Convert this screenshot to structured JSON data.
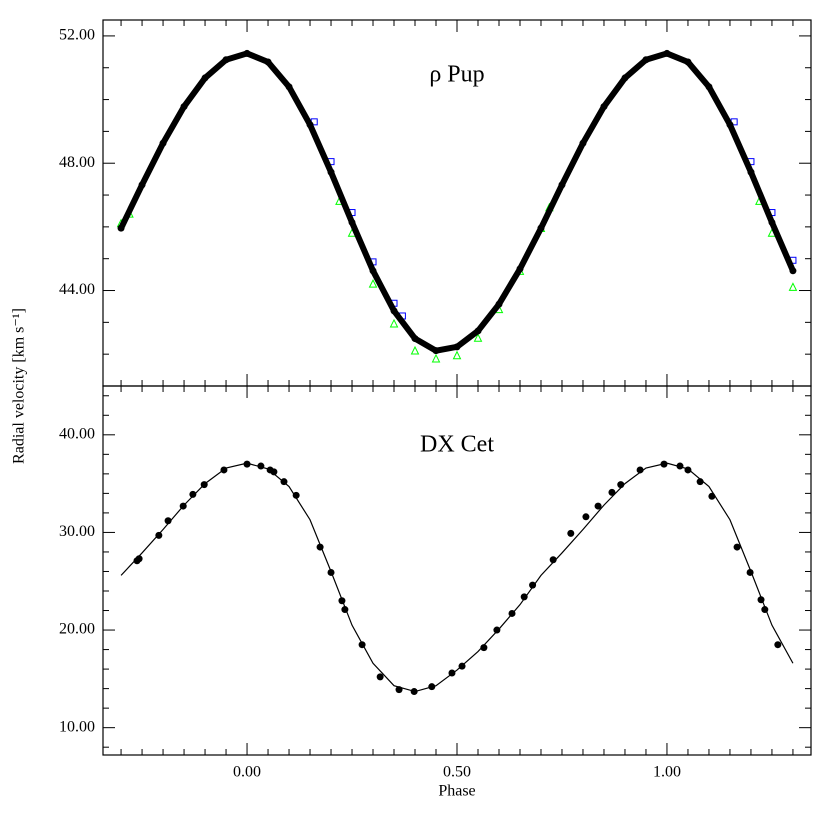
{
  "chart_data": [
    {
      "type": "scatter",
      "annotation": "ρ Pup",
      "ylabel": "Radial velocity [km s⁻¹]",
      "xlim": [
        -0.343,
        1.343
      ],
      "ylim": [
        41.0,
        52.5
      ],
      "xticks": [
        0,
        0.5,
        1
      ],
      "show_xticklabels": false,
      "xminorticks": [
        -0.3,
        -0.25,
        -0.2,
        -0.15,
        -0.1,
        -0.05,
        0.05,
        0.1,
        0.15,
        0.2,
        0.25,
        0.3,
        0.35,
        0.4,
        0.45,
        0.55,
        0.6,
        0.65,
        0.7,
        0.75,
        0.8,
        0.85,
        0.9,
        0.95,
        1.05,
        1.1,
        1.15,
        1.2,
        1.25,
        1.3
      ],
      "yticks": [
        {
          "value": 44,
          "label": "44.00"
        },
        {
          "value": 48,
          "label": "48.00"
        },
        {
          "value": 52,
          "label": "52.00"
        }
      ],
      "yminorticks": [
        42,
        43,
        45,
        46,
        47,
        49,
        50,
        51
      ],
      "series": [
        {
          "marker": "square",
          "color": "#0000ff",
          "x": [
            0.16,
            0.2,
            0.25,
            0.3,
            0.35,
            0.37,
            1.16,
            1.2,
            1.25,
            1.3
          ],
          "values": [
            49.3,
            48.05,
            46.45,
            44.9,
            43.6,
            43.2,
            49.3,
            48.05,
            46.45,
            44.95
          ]
        },
        {
          "marker": "triangle",
          "color": "#00ff00",
          "x": [
            -0.3,
            -0.28,
            0.22,
            0.25,
            0.3,
            0.35,
            0.4,
            0.45,
            0.5,
            0.55,
            0.6,
            0.65,
            0.7,
            0.72,
            1.22,
            1.25,
            1.3
          ],
          "values": [
            46.1,
            46.4,
            46.8,
            45.8,
            44.2,
            42.95,
            42.1,
            41.85,
            41.95,
            42.5,
            43.4,
            44.6,
            45.95,
            46.6,
            46.8,
            45.8,
            44.1
          ]
        },
        {
          "marker": "circle",
          "color": "#000000",
          "connect": true,
          "x": [
            -0.3,
            -0.25,
            -0.2,
            -0.15,
            -0.1,
            -0.05,
            0,
            0.05,
            0.1,
            0.15,
            0.2,
            0.25,
            0.3,
            0.35,
            0.4,
            0.45,
            0.5,
            0.55,
            0.6,
            0.65,
            0.7,
            0.75,
            0.8,
            0.85,
            0.9,
            0.95,
            1,
            1.05,
            1.1,
            1.15,
            1.2,
            1.25,
            1.3
          ],
          "values": [
            45.96,
            47.32,
            48.63,
            49.78,
            50.68,
            51.25,
            51.45,
            51.18,
            50.4,
            49.21,
            47.72,
            46.14,
            44.62,
            43.36,
            42.49,
            42.11,
            42.23,
            42.73,
            43.57,
            44.68,
            45.96,
            47.32,
            48.63,
            49.78,
            50.68,
            51.25,
            51.45,
            51.18,
            50.4,
            49.21,
            47.72,
            46.14,
            44.62
          ]
        }
      ]
    },
    {
      "type": "scatter",
      "annotation": "DX Cet",
      "xlabel": "Phase",
      "xlim": [
        -0.343,
        1.343
      ],
      "ylim": [
        7.2,
        45.0
      ],
      "xticks": [
        {
          "value": 0,
          "label": "0.00"
        },
        {
          "value": 0.5,
          "label": "0.50"
        },
        {
          "value": 1,
          "label": "1.00"
        }
      ],
      "show_xticklabels": true,
      "xminorticks": [
        -0.3,
        -0.25,
        -0.2,
        -0.15,
        -0.1,
        -0.05,
        0.05,
        0.1,
        0.15,
        0.2,
        0.25,
        0.3,
        0.35,
        0.4,
        0.45,
        0.55,
        0.6,
        0.65,
        0.7,
        0.75,
        0.8,
        0.85,
        0.9,
        0.95,
        1.05,
        1.1,
        1.15,
        1.2,
        1.25,
        1.3
      ],
      "yticks": [
        {
          "value": 10,
          "label": "10.00"
        },
        {
          "value": 20,
          "label": "20.00"
        },
        {
          "value": 30,
          "label": "30.00"
        },
        {
          "value": 40,
          "label": "40.00"
        }
      ],
      "yminorticks": [
        8,
        12,
        14,
        16,
        18,
        22,
        24,
        26,
        28,
        32,
        34,
        36,
        38,
        42,
        44
      ],
      "series": [
        {
          "color": "#000000",
          "connect": true,
          "x": [
            -0.3,
            -0.25,
            -0.2,
            -0.15,
            -0.1,
            -0.05,
            0,
            0.05,
            0.1,
            0.15,
            0.2,
            0.25,
            0.3,
            0.35,
            0.4,
            0.45,
            0.5,
            0.55,
            0.6,
            0.65,
            0.7,
            0.75,
            0.8,
            0.85,
            0.9,
            0.95,
            1,
            1.05,
            1.1,
            1.15,
            1.2,
            1.25,
            1.3
          ],
          "values": [
            25.6,
            27.9,
            30.3,
            32.8,
            35.0,
            36.6,
            37.1,
            36.5,
            34.7,
            31.3,
            26.0,
            20.5,
            16.6,
            14.3,
            13.7,
            14.3,
            15.9,
            17.8,
            20.1,
            22.6,
            25.6,
            27.9,
            30.3,
            32.8,
            35.0,
            36.6,
            37.1,
            36.5,
            34.7,
            31.3,
            26.0,
            20.5,
            16.6
          ]
        },
        {
          "marker": "circle",
          "color": "#000000",
          "x": [
            -0.262,
            -0.257,
            -0.21,
            -0.188,
            -0.152,
            -0.129,
            -0.102,
            -0.055,
            0.0,
            0.033,
            0.055,
            0.064,
            0.088,
            0.117,
            0.174,
            0.2,
            0.226,
            0.233,
            0.274,
            0.317,
            0.362,
            0.398,
            0.44,
            0.488,
            0.512,
            0.564,
            0.595,
            0.631,
            0.66,
            0.68,
            0.729,
            0.771,
            0.807,
            0.836,
            0.869,
            0.89,
            0.936,
            0.993,
            1.031,
            1.05,
            1.079,
            1.107,
            1.167,
            1.198,
            1.224,
            1.233,
            1.264
          ],
          "values": [
            27.1,
            27.3,
            29.7,
            31.2,
            32.7,
            33.9,
            34.9,
            36.4,
            37.0,
            36.8,
            36.4,
            36.2,
            35.2,
            33.8,
            28.5,
            25.9,
            23.0,
            22.1,
            18.5,
            15.2,
            13.9,
            13.7,
            14.2,
            15.6,
            16.3,
            18.2,
            20.0,
            21.7,
            23.4,
            24.6,
            27.2,
            29.9,
            31.6,
            32.7,
            34.1,
            34.9,
            36.4,
            37.0,
            36.8,
            36.4,
            35.2,
            33.7,
            28.5,
            25.9,
            23.1,
            22.1,
            18.5
          ]
        }
      ]
    }
  ]
}
